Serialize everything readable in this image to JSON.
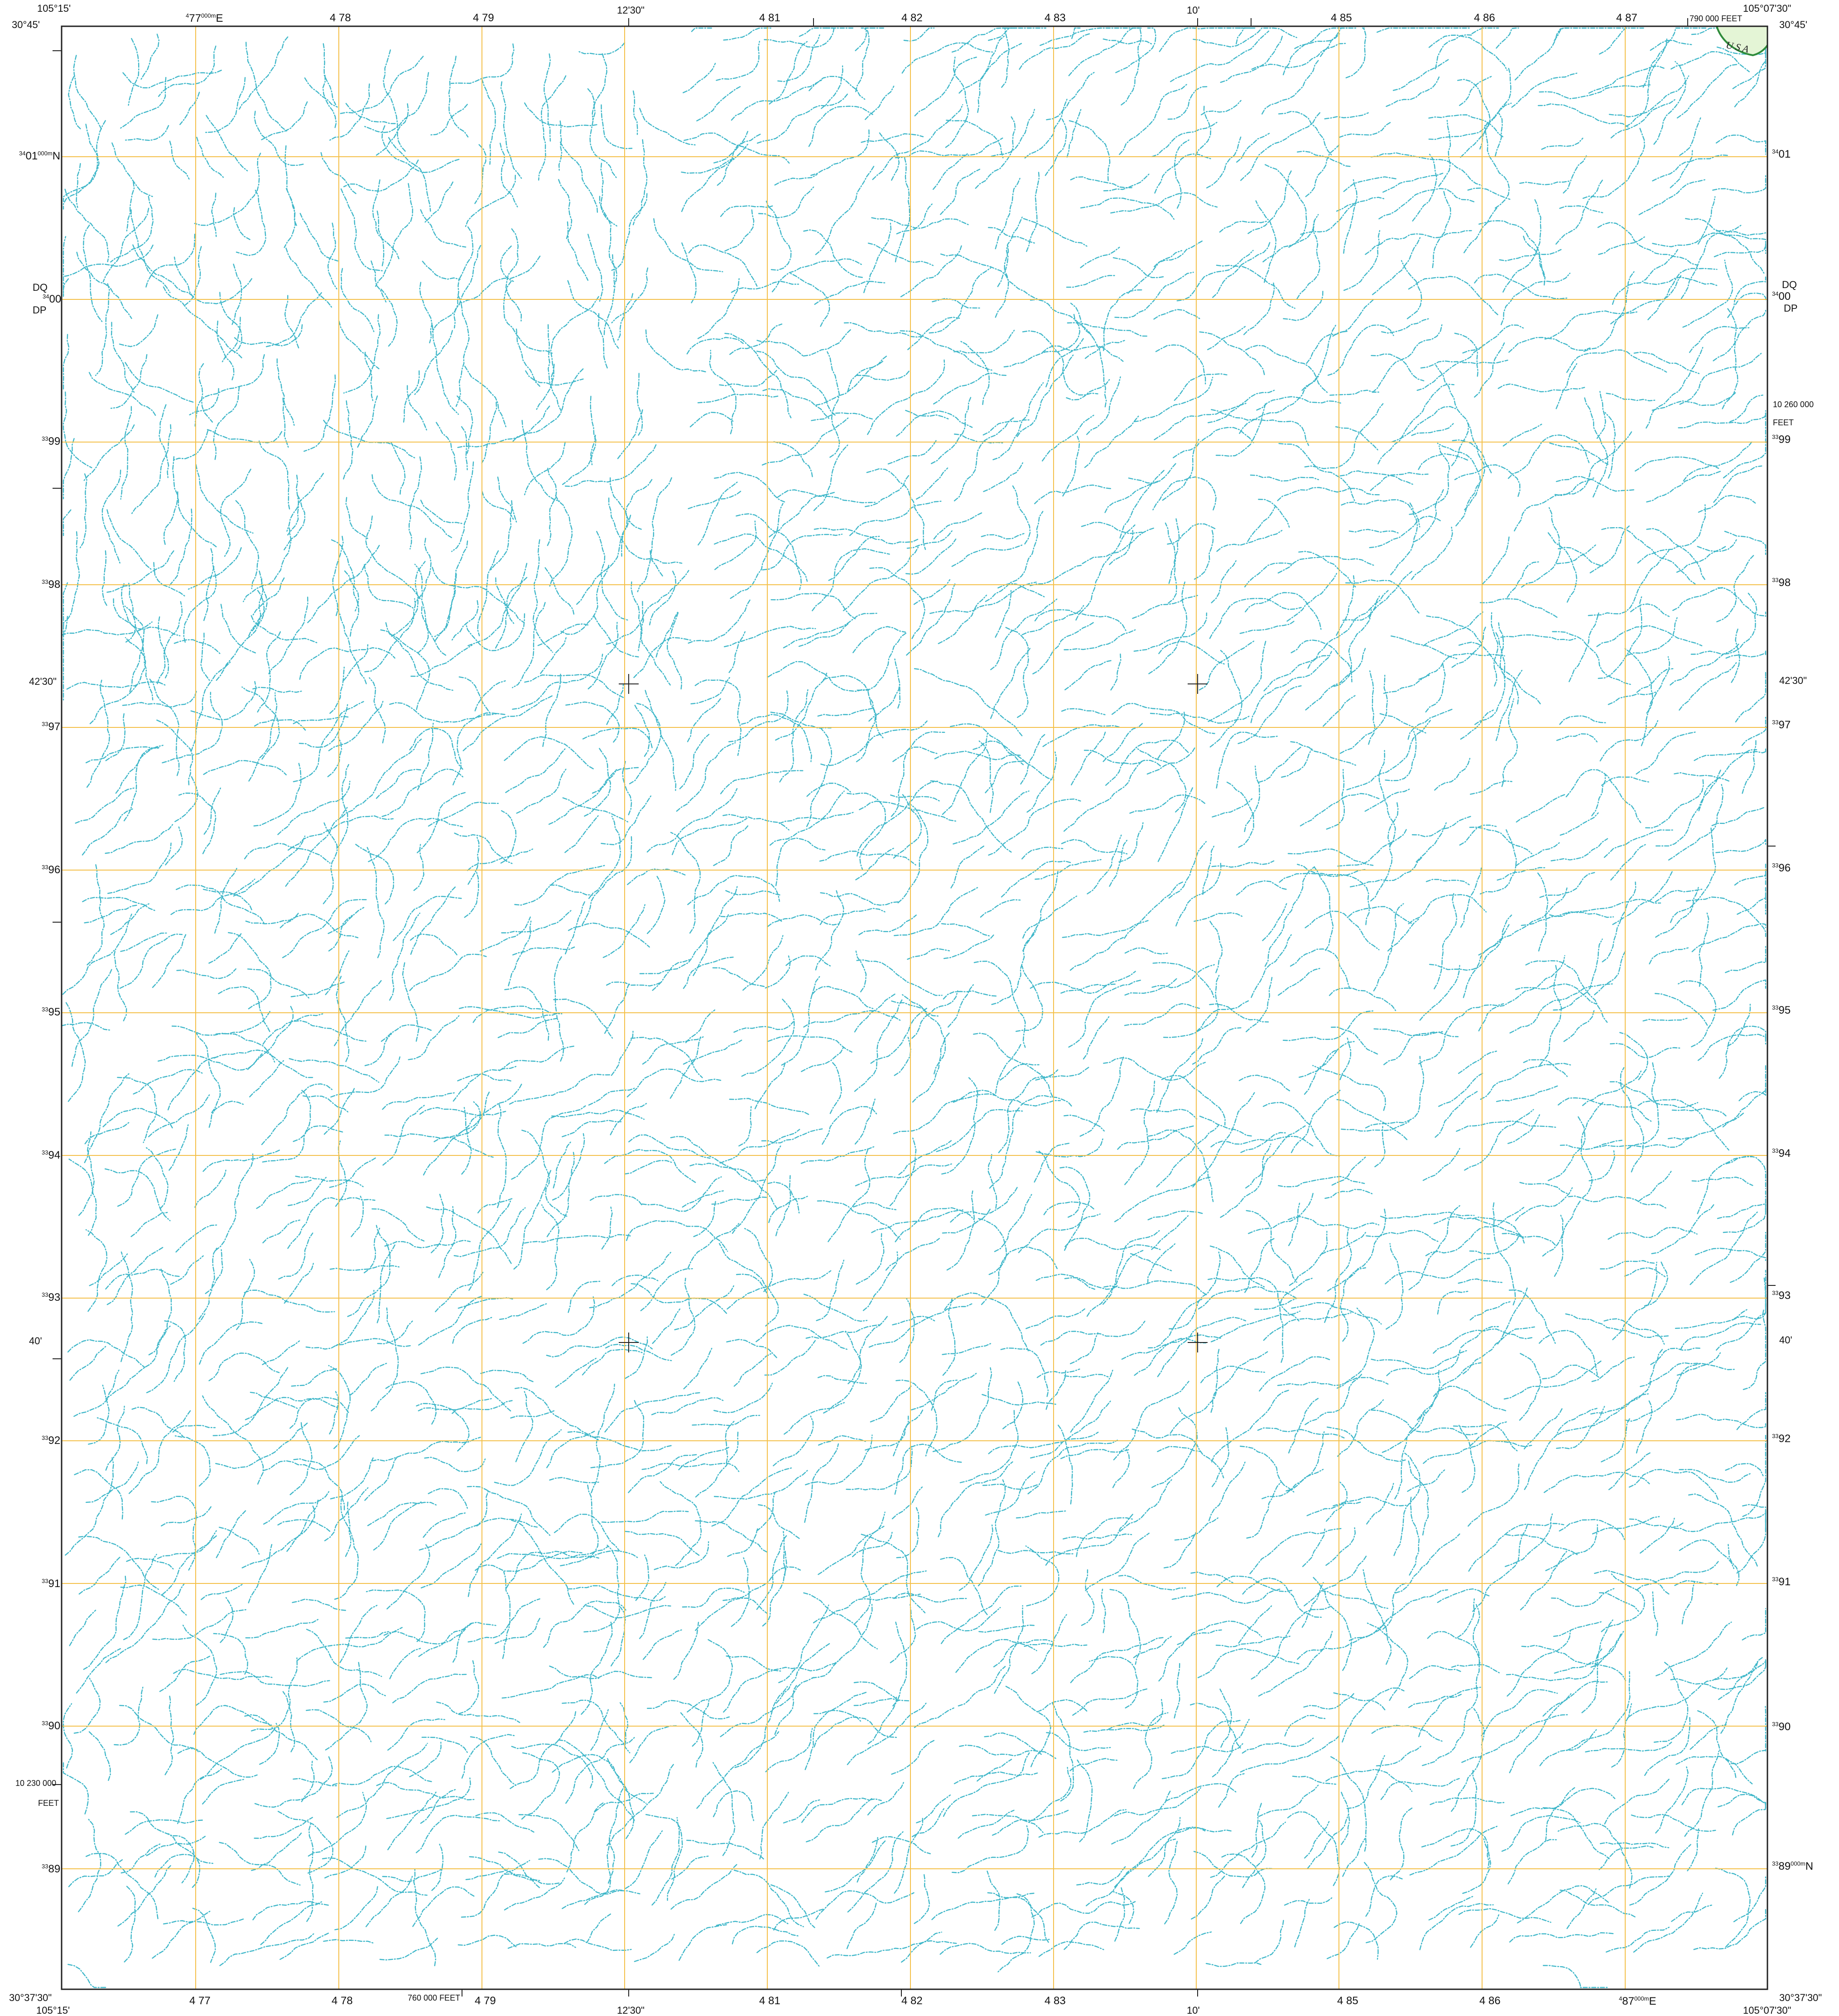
{
  "colors": {
    "background": "#ffffff",
    "grid": "#f4c04a",
    "stream": "#3fb7c9",
    "neatline": "#222222",
    "usa_fill": "#e4f5d6",
    "usa_border": "#2e8b3a"
  },
  "corners": {
    "top_left_lon": "105°15'",
    "top_left_lat": "30°45'",
    "top_right_lon": "105°07'30\"",
    "top_right_lat": "30°45'",
    "bottom_left_lat": "30°37'30\"",
    "bottom_left_lon": "105°15'",
    "bottom_right_lat": "30°37'30\"",
    "bottom_right_lon": "105°07'30\""
  },
  "top_labels": {
    "e77": "77",
    "e77_sup": "4",
    "e77_suffix_sup": "000m",
    "e77_suffix": "E",
    "e78": "4 78",
    "e79": "4 79",
    "min_1230": "12'30\"",
    "e81": "4 81",
    "e82": "4 82",
    "e83": "4 83",
    "min_10": "10'",
    "e85": "4 85",
    "e86": "4 86",
    "e87": "4 87",
    "feet_790": "790 000 FEET"
  },
  "bottom_labels": {
    "e77": "4 77",
    "e78": "4 78",
    "feet_760": "760 000 FEET",
    "e79": "4 79",
    "min_1230": "12'30\"",
    "e81": "4 81",
    "e82": "4 82",
    "e83": "4 83",
    "min_10": "10'",
    "e85": "4 85",
    "e86": "4 86",
    "e87": "87",
    "e87_sup": "4",
    "e87_suffix_sup": "000m",
    "e87_suffix": "E"
  },
  "left_labels": {
    "n01_sup": "34",
    "n01": "01",
    "n01_suffix_sup": "000m",
    "n01_suffix": "N",
    "n00_sup": "34",
    "n00": "00",
    "dq": "DQ",
    "dp": "DP",
    "n99": "99",
    "n98": "98",
    "n97": "97",
    "n96": "96",
    "n95": "95",
    "n94": "94",
    "n93": "93",
    "n92": "92",
    "n91": "91",
    "n90": "90",
    "n89": "89",
    "sup33": "33",
    "min_4230": "42'30\"",
    "min_40": "40'",
    "feet_10230000": "10 230 000",
    "feet_word": "FEET"
  },
  "right_labels": {
    "n01_sup": "34",
    "n01": "01",
    "n00_sup": "34",
    "n00": "00",
    "dq": "DQ",
    "dp": "DP",
    "feet_10260000": "10 260 000",
    "feet_word": "FEET",
    "n99": "99",
    "n98": "98",
    "n97": "97",
    "n96": "96",
    "n95": "95",
    "n94": "94",
    "n93": "93",
    "n92": "92",
    "n91": "91",
    "n90": "90",
    "n89": "89",
    "n89_suffix_sup": "000m",
    "n89_suffix": "N",
    "sup33": "33",
    "min_4230": "42'30\"",
    "min_40": "40'"
  },
  "usa_label": "U S A"
}
